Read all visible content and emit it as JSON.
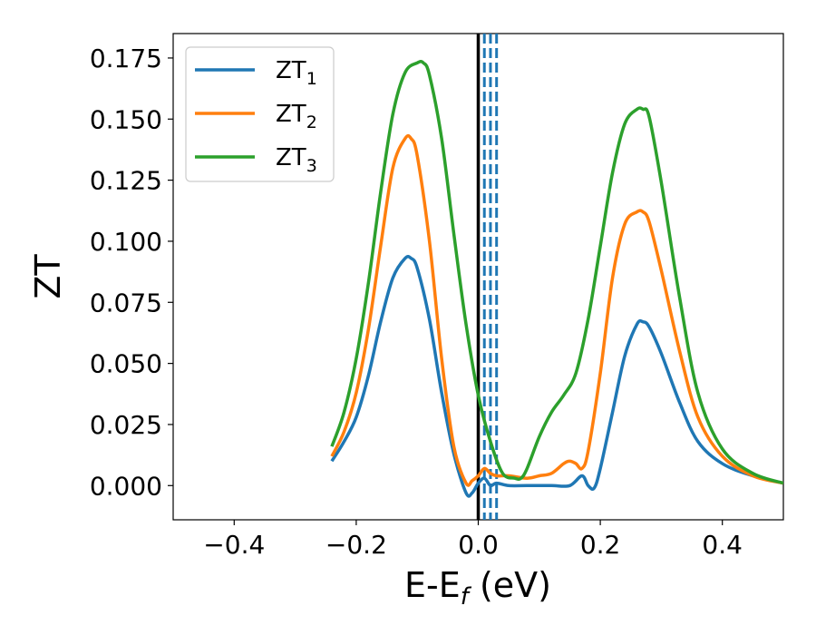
{
  "chart_data": {
    "type": "line",
    "xlabel": "E-E",
    "xlabel_sub": "f",
    "xlabel_unit": " (eV)",
    "ylabel": "ZT",
    "xlim": [
      -0.5,
      0.5
    ],
    "ylim": [
      -0.014,
      0.185
    ],
    "xticks": [
      -0.4,
      -0.2,
      0.0,
      0.2,
      0.4
    ],
    "xtick_labels": [
      "−0.4",
      "−0.2",
      "0.0",
      "0.2",
      "0.4"
    ],
    "yticks": [
      0.0,
      0.025,
      0.05,
      0.075,
      0.1,
      0.125,
      0.15,
      0.175
    ],
    "ytick_labels": [
      "0.000",
      "0.025",
      "0.050",
      "0.075",
      "0.100",
      "0.125",
      "0.150",
      "0.175"
    ],
    "grid": false,
    "legend_position": "top-left",
    "vlines": [
      {
        "x": 0.0,
        "style": "solid",
        "color": "#000000"
      },
      {
        "x": 0.01,
        "style": "dashed",
        "color": "#1f77b4"
      },
      {
        "x": 0.02,
        "style": "dashed",
        "color": "#1f77b4"
      },
      {
        "x": 0.03,
        "style": "dashed",
        "color": "#1f77b4"
      }
    ],
    "series": [
      {
        "name": "ZT",
        "sub": "1",
        "color": "#1f77b4",
        "x": [
          -0.24,
          -0.22,
          -0.2,
          -0.18,
          -0.16,
          -0.14,
          -0.12,
          -0.11,
          -0.1,
          -0.08,
          -0.06,
          -0.04,
          -0.02,
          -0.01,
          0.0,
          0.01,
          0.02,
          0.03,
          0.05,
          0.08,
          0.12,
          0.15,
          0.17,
          0.18,
          0.19,
          0.2,
          0.22,
          0.24,
          0.26,
          0.27,
          0.28,
          0.3,
          0.33,
          0.36,
          0.4,
          0.45,
          0.5
        ],
        "y": [
          0.01,
          0.018,
          0.028,
          0.045,
          0.067,
          0.085,
          0.093,
          0.093,
          0.089,
          0.068,
          0.038,
          0.013,
          -0.003,
          -0.003,
          0.001,
          0.003,
          0.0,
          0.001,
          0.0,
          0.0,
          0.0,
          0.0,
          0.004,
          0.0,
          -0.001,
          0.007,
          0.03,
          0.053,
          0.066,
          0.067,
          0.065,
          0.054,
          0.034,
          0.018,
          0.009,
          0.004,
          0.001
        ]
      },
      {
        "name": "ZT",
        "sub": "2",
        "color": "#ff7f0e",
        "x": [
          -0.24,
          -0.22,
          -0.2,
          -0.18,
          -0.16,
          -0.14,
          -0.12,
          -0.11,
          -0.1,
          -0.08,
          -0.06,
          -0.04,
          -0.02,
          -0.01,
          0.0,
          0.01,
          0.02,
          0.03,
          0.05,
          0.08,
          0.1,
          0.12,
          0.14,
          0.15,
          0.16,
          0.17,
          0.18,
          0.2,
          0.22,
          0.24,
          0.26,
          0.27,
          0.28,
          0.3,
          0.33,
          0.36,
          0.4,
          0.45,
          0.5
        ],
        "y": [
          0.012,
          0.022,
          0.038,
          0.064,
          0.098,
          0.13,
          0.142,
          0.142,
          0.135,
          0.1,
          0.052,
          0.016,
          0.001,
          0.002,
          0.004,
          0.007,
          0.005,
          0.004,
          0.004,
          0.003,
          0.004,
          0.005,
          0.009,
          0.01,
          0.009,
          0.007,
          0.014,
          0.046,
          0.085,
          0.107,
          0.112,
          0.112,
          0.108,
          0.088,
          0.055,
          0.028,
          0.012,
          0.004,
          0.001
        ]
      },
      {
        "name": "ZT",
        "sub": "3",
        "color": "#2ca02c",
        "x": [
          -0.24,
          -0.22,
          -0.2,
          -0.18,
          -0.16,
          -0.14,
          -0.12,
          -0.1,
          -0.09,
          -0.08,
          -0.06,
          -0.04,
          -0.02,
          0.0,
          0.02,
          0.04,
          0.06,
          0.07,
          0.08,
          0.1,
          0.12,
          0.14,
          0.16,
          0.18,
          0.2,
          0.22,
          0.24,
          0.26,
          0.27,
          0.28,
          0.3,
          0.33,
          0.36,
          0.4,
          0.45,
          0.5
        ],
        "y": [
          0.016,
          0.03,
          0.052,
          0.083,
          0.12,
          0.152,
          0.169,
          0.173,
          0.173,
          0.168,
          0.142,
          0.103,
          0.066,
          0.037,
          0.018,
          0.005,
          0.003,
          0.003,
          0.007,
          0.02,
          0.03,
          0.037,
          0.046,
          0.068,
          0.098,
          0.128,
          0.148,
          0.154,
          0.154,
          0.151,
          0.124,
          0.077,
          0.038,
          0.015,
          0.005,
          0.001
        ]
      }
    ]
  }
}
